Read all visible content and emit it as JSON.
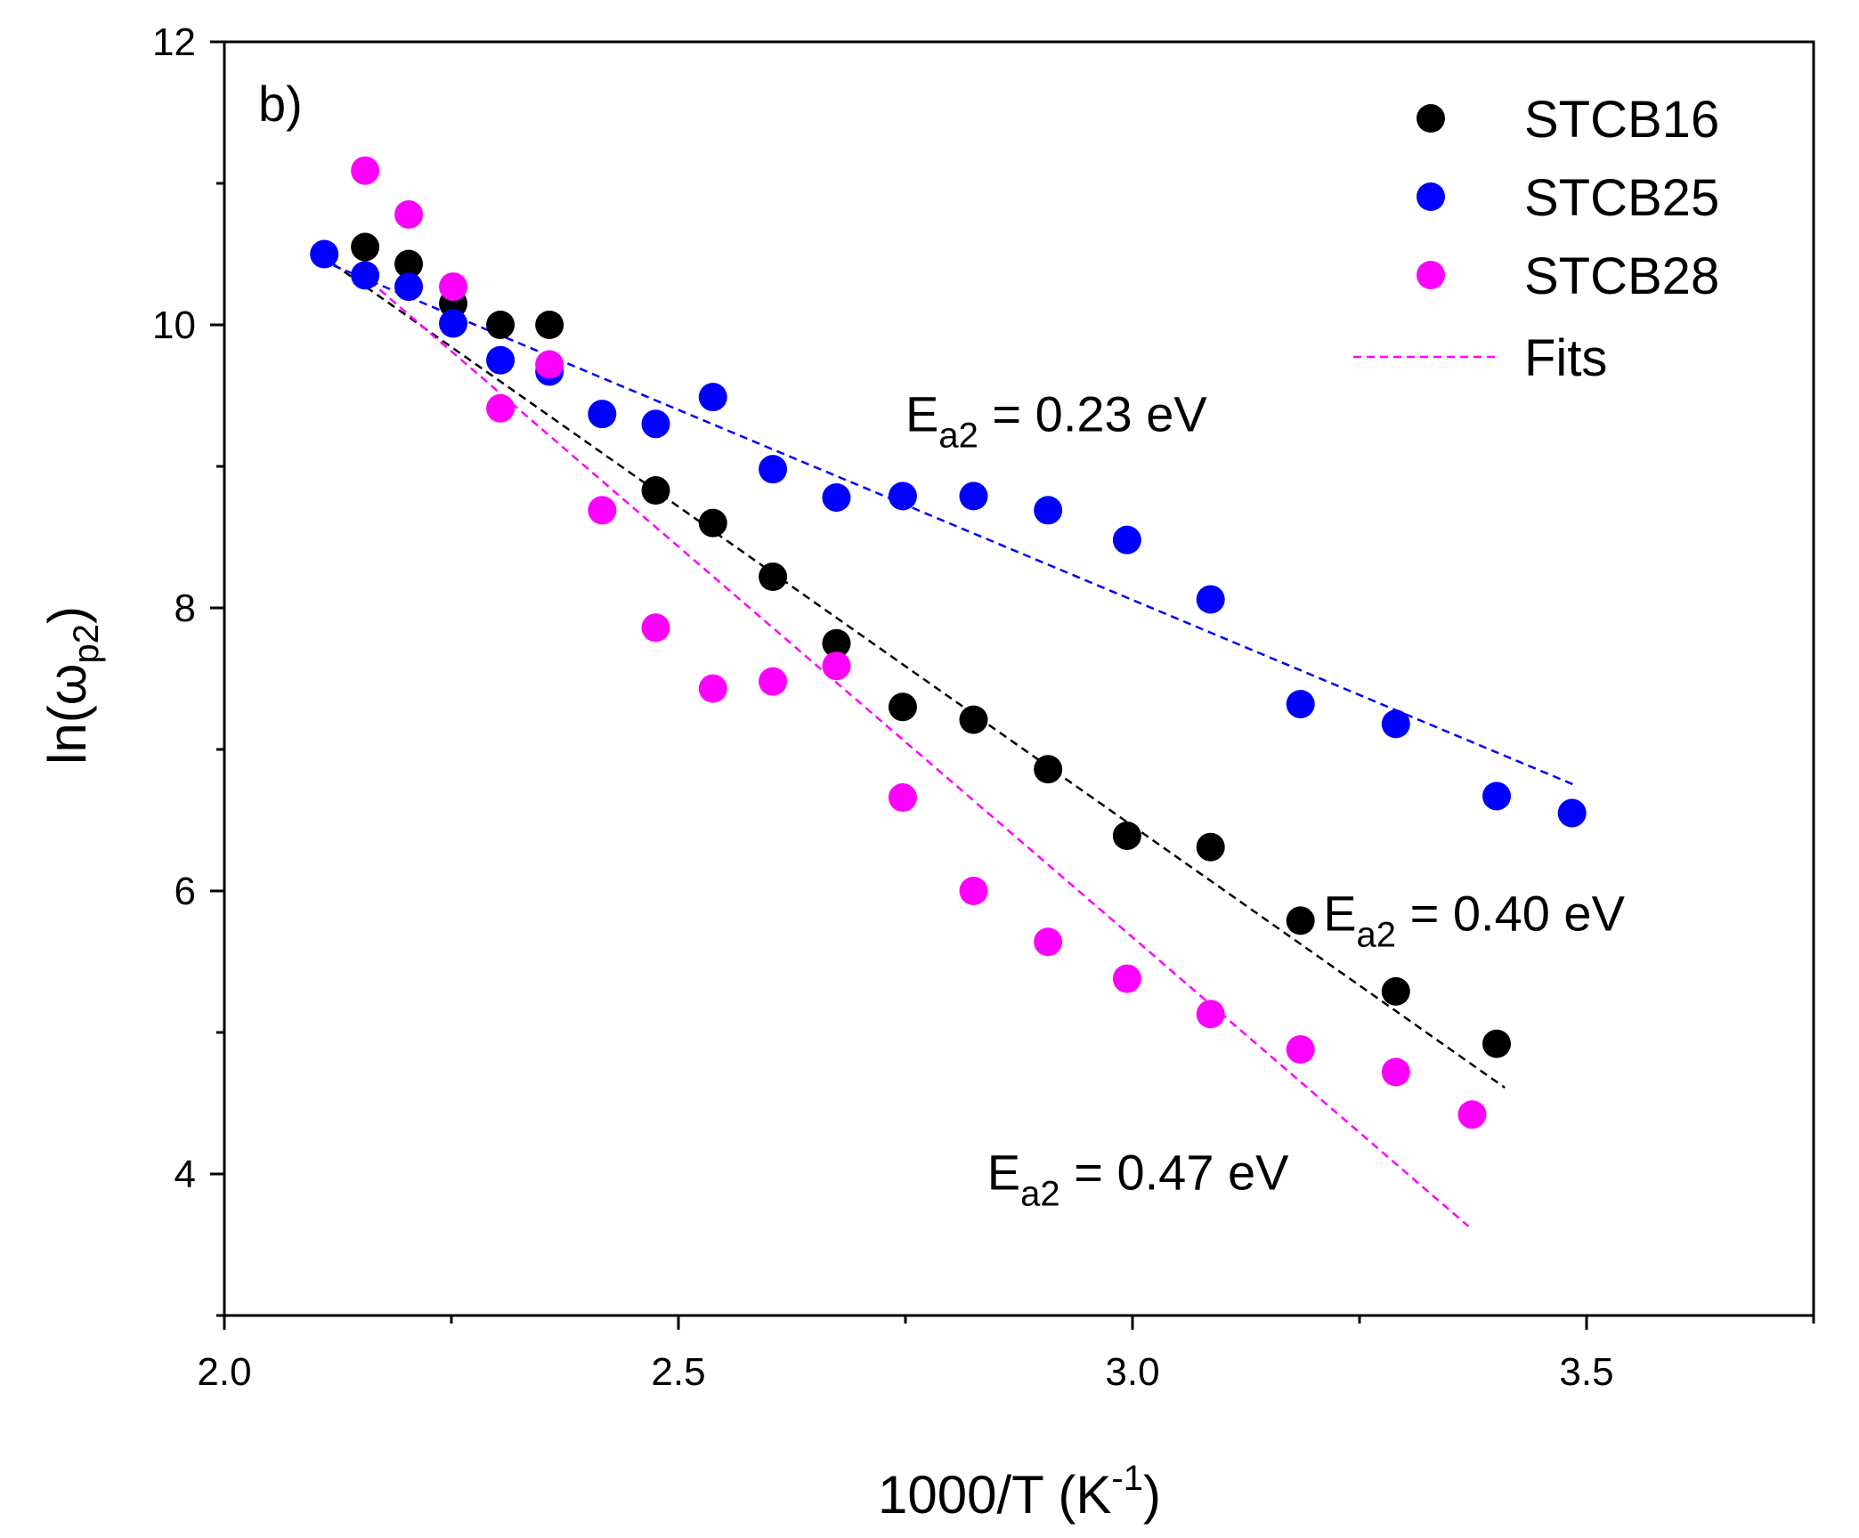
{
  "chart_data": {
    "type": "scatter",
    "panel_label": "b)",
    "xlabel": {
      "main": "1000/T (K",
      "sup": "-1",
      "tail": ")"
    },
    "ylabel": {
      "main": "ln(ω",
      "sub": "p2",
      "tail": ")"
    },
    "xlim": [
      2.0,
      3.75
    ],
    "ylim": [
      3,
      12
    ],
    "x_ticks": [
      2.0,
      2.5,
      3.0,
      3.5
    ],
    "x_tick_labels": [
      "2.0",
      "2.5",
      "3.0",
      "3.5"
    ],
    "x_minor_ticks": [
      2.25,
      2.75,
      3.25,
      3.75
    ],
    "y_ticks": [
      4,
      6,
      8,
      10,
      12
    ],
    "y_tick_labels": [
      "4",
      "6",
      "8",
      "10",
      "12"
    ],
    "y_minor_ticks": [
      3,
      5,
      7,
      9,
      11
    ],
    "series": [
      {
        "name": "STCB16",
        "color": "#000000",
        "x": [
          2.155,
          2.203,
          2.252,
          2.304,
          2.358,
          2.475,
          2.538,
          2.604,
          2.674,
          2.747,
          2.825,
          2.907,
          2.994,
          3.086,
          3.185,
          3.29,
          3.401
        ],
        "y": [
          10.55,
          10.43,
          10.15,
          10.0,
          10.0,
          8.83,
          8.6,
          8.22,
          7.75,
          7.3,
          7.21,
          6.86,
          6.39,
          6.31,
          5.79,
          5.29,
          4.92
        ],
        "fit": {
          "x": [
            2.12,
            3.41
          ],
          "y": [
            10.43,
            4.61
          ]
        }
      },
      {
        "name": "STCB25",
        "color": "#0000ff",
        "x": [
          2.11,
          2.155,
          2.203,
          2.252,
          2.304,
          2.358,
          2.416,
          2.475,
          2.538,
          2.604,
          2.674,
          2.747,
          2.825,
          2.907,
          2.994,
          3.086,
          3.185,
          3.29,
          3.401,
          3.484
        ],
        "y": [
          10.5,
          10.35,
          10.27,
          10.01,
          9.75,
          9.67,
          9.37,
          9.3,
          9.49,
          8.98,
          8.78,
          8.79,
          8.79,
          8.69,
          8.48,
          8.06,
          7.32,
          7.18,
          6.67,
          6.55
        ],
        "fit": {
          "x": [
            2.12,
            3.49
          ],
          "y": [
            10.42,
            6.74
          ]
        }
      },
      {
        "name": "STCB28",
        "color": "#ff00ff",
        "x": [
          2.155,
          2.203,
          2.252,
          2.304,
          2.358,
          2.416,
          2.475,
          2.538,
          2.604,
          2.674,
          2.747,
          2.825,
          2.907,
          2.994,
          3.086,
          3.185,
          3.29,
          3.374
        ],
        "y": [
          11.09,
          10.78,
          10.27,
          9.41,
          9.72,
          8.69,
          7.86,
          7.43,
          7.48,
          7.59,
          6.66,
          6.0,
          5.64,
          5.38,
          5.13,
          4.88,
          4.72,
          4.42
        ],
        "fit": {
          "x": [
            2.16,
            3.37
          ],
          "y": [
            10.31,
            3.63
          ]
        }
      }
    ],
    "legend": {
      "placement": "top-right",
      "entries": [
        "STCB16",
        "STCB25",
        "STCB28",
        "Fits"
      ],
      "fits_label": "Fits",
      "fits_color": "#ff00ff"
    },
    "annotations": [
      {
        "main": "E",
        "sub": "a2",
        "rest": " = 0.23 eV",
        "x": 2.75,
        "y": 9.25
      },
      {
        "main": "E",
        "sub": "a2",
        "rest": " = 0.40 eV",
        "x": 3.21,
        "y": 5.72
      },
      {
        "main": "E",
        "sub": "a2",
        "rest": " = 0.47 eV",
        "x": 2.84,
        "y": 3.89
      }
    ]
  }
}
